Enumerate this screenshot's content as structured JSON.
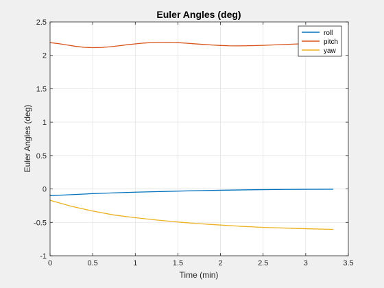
{
  "figure": {
    "background": "#f0f0f0",
    "axes_background": "#ffffff"
  },
  "chart_data": {
    "type": "line",
    "title": "Euler Angles (deg)",
    "xlabel": "Time (min)",
    "ylabel": "Euler Angles (deg)",
    "xlim": [
      0,
      3.5
    ],
    "ylim": [
      -1,
      2.5
    ],
    "xticks": [
      0,
      0.5,
      1,
      1.5,
      2,
      2.5,
      3,
      3.5
    ],
    "xtick_labels": [
      "0",
      "0.5",
      "1",
      "1.5",
      "2",
      "2.5",
      "3",
      "3.5"
    ],
    "yticks": [
      -1,
      -0.5,
      0,
      0.5,
      1,
      1.5,
      2,
      2.5
    ],
    "ytick_labels": [
      "-1",
      "-0.5",
      "0",
      "0.5",
      "1",
      "1.5",
      "2",
      "2.5"
    ],
    "grid": true,
    "legend_position": "top-right",
    "series": [
      {
        "name": "roll",
        "color": "#0072bd",
        "x": [
          0,
          0.25,
          0.5,
          0.75,
          1,
          1.25,
          1.5,
          1.75,
          2,
          2.25,
          2.5,
          2.75,
          3,
          3.32
        ],
        "y": [
          -0.1,
          -0.085,
          -0.07,
          -0.058,
          -0.048,
          -0.04,
          -0.032,
          -0.025,
          -0.019,
          -0.014,
          -0.01,
          -0.007,
          -0.005,
          -0.004
        ]
      },
      {
        "name": "pitch",
        "color": "#d95319",
        "x": [
          0,
          0.1,
          0.2,
          0.3,
          0.4,
          0.5,
          0.6,
          0.7,
          0.8,
          0.9,
          1.0,
          1.1,
          1.2,
          1.3,
          1.4,
          1.5,
          1.6,
          1.7,
          1.8,
          1.9,
          2.0,
          2.1,
          2.2,
          2.3,
          2.4,
          2.5,
          2.6,
          2.7,
          2.8,
          2.9,
          3.0,
          3.1,
          3.2,
          3.32
        ],
        "y": [
          2.19,
          2.175,
          2.155,
          2.135,
          2.12,
          2.115,
          2.118,
          2.128,
          2.142,
          2.158,
          2.172,
          2.184,
          2.192,
          2.195,
          2.195,
          2.19,
          2.182,
          2.172,
          2.163,
          2.155,
          2.148,
          2.143,
          2.142,
          2.143,
          2.146,
          2.15,
          2.155,
          2.16,
          2.165,
          2.17,
          2.175,
          2.178,
          2.18,
          2.18
        ]
      },
      {
        "name": "yaw",
        "color": "#edb120",
        "x": [
          0,
          0.25,
          0.5,
          0.75,
          1,
          1.25,
          1.5,
          1.75,
          2,
          2.25,
          2.5,
          2.75,
          3,
          3.32
        ],
        "y": [
          -0.17,
          -0.26,
          -0.33,
          -0.39,
          -0.43,
          -0.465,
          -0.495,
          -0.52,
          -0.54,
          -0.56,
          -0.575,
          -0.585,
          -0.595,
          -0.605
        ]
      }
    ]
  }
}
